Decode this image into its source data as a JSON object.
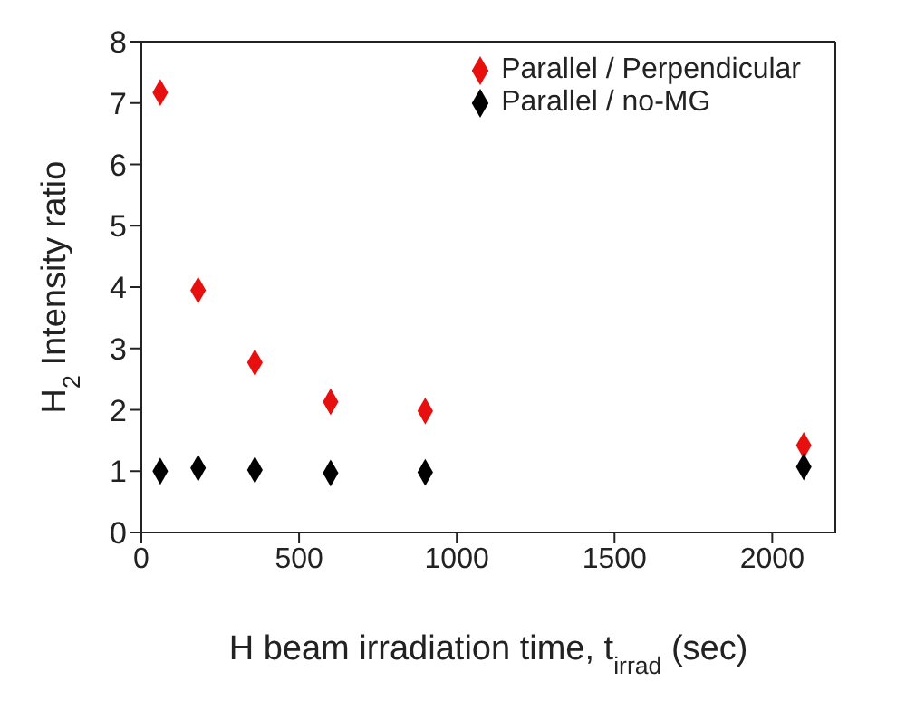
{
  "chart_data": {
    "type": "scatter",
    "xlabel": "H beam irradiation time, t$_{irrad}$ (sec)",
    "ylabel": "H$_{2}$ Intensity ratio",
    "xlim": [
      0,
      2200
    ],
    "xticks": [
      0,
      500,
      1000,
      1500,
      2000
    ],
    "ylim": [
      0,
      8
    ],
    "yticks": [
      0,
      1,
      2,
      3,
      4,
      5,
      6,
      7,
      8
    ],
    "x": [
      60,
      180,
      360,
      600,
      900,
      2100
    ],
    "series": [
      {
        "name": "Parallel / Perpendicular",
        "color": "#e8100e",
        "values": [
          7.17,
          3.95,
          2.77,
          2.13,
          1.98,
          1.42
        ]
      },
      {
        "name": "Parallel / no-MG",
        "color": "#000000",
        "values": [
          1.0,
          1.05,
          1.02,
          0.97,
          0.98,
          1.07
        ]
      }
    ],
    "marker": "diamond",
    "legend": "top right"
  }
}
